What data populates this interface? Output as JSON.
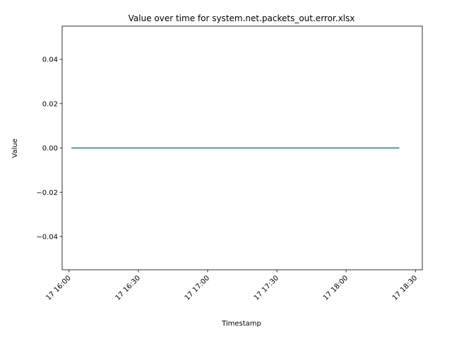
{
  "chart_data": {
    "type": "line",
    "title": "Value over time for system.net.packets_out.error.xlsx",
    "xlabel": "Timestamp",
    "ylabel": "Value",
    "xlim": [
      "17 15:57",
      "18:33"
    ],
    "ylim": [
      -0.055,
      0.055
    ],
    "x_ticks": [
      "17 16:00",
      "17 16:30",
      "17 17:00",
      "17 17:30",
      "17 18:00",
      "17 18:30"
    ],
    "y_ticks": [
      "0.04",
      "0.02",
      "0.00",
      "−0.02",
      "−0.04"
    ],
    "y_tick_values": [
      0.04,
      0.02,
      0.0,
      -0.02,
      -0.04
    ],
    "series": [
      {
        "color": "#1f77b4",
        "x": [
          "16:01",
          "18:23"
        ],
        "y": [
          0,
          0
        ]
      }
    ],
    "grid": false,
    "legend": "none"
  }
}
